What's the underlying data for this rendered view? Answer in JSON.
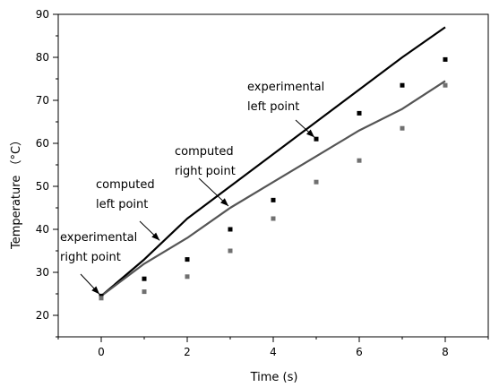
{
  "chart_data": {
    "type": "line",
    "xlabel": "Time (s)",
    "ylabel": "Temperature （°C）",
    "xlim": [
      -1,
      9
    ],
    "ylim": [
      15,
      90
    ],
    "x_ticks": [
      0,
      2,
      4,
      6,
      8
    ],
    "y_ticks": [
      20,
      30,
      40,
      50,
      60,
      70,
      80,
      90
    ],
    "grid": false,
    "series": [
      {
        "kind": "line",
        "color": "#000000",
        "x": [
          0,
          1,
          2,
          3,
          4,
          5,
          6,
          7,
          8
        ],
        "values": [
          24.5,
          33.0,
          42.5,
          50.0,
          57.5,
          65.0,
          72.5,
          80.0,
          87.0
        ]
      },
      {
        "kind": "line",
        "color": "#555555",
        "x": [
          0,
          1,
          2,
          3,
          4,
          5,
          6,
          7,
          8
        ],
        "values": [
          24.5,
          32.0,
          38.0,
          45.0,
          51.0,
          57.0,
          63.0,
          68.0,
          74.5
        ]
      },
      {
        "kind": "scatter",
        "color": "#000000",
        "x": [
          0,
          1,
          2,
          3,
          4,
          5,
          6,
          7,
          8
        ],
        "values": [
          24.5,
          28.5,
          33.0,
          40.0,
          46.8,
          61.0,
          67.0,
          73.5,
          79.5
        ]
      },
      {
        "kind": "scatter",
        "color": "#707070",
        "x": [
          0,
          1,
          2,
          3,
          4,
          5,
          6,
          7,
          8
        ],
        "values": [
          24.0,
          25.5,
          29.0,
          35.0,
          42.5,
          51.0,
          56.0,
          63.5,
          73.5
        ]
      }
    ],
    "annotations": [
      {
        "lines": [
          "experimental",
          "left point"
        ],
        "target": [
          5,
          61.0
        ]
      },
      {
        "lines": [
          "computed",
          "right point"
        ],
        "target": [
          3,
          45.0
        ]
      },
      {
        "lines": [
          "computed",
          "left point"
        ],
        "target": [
          1.4,
          37.0
        ]
      },
      {
        "lines": [
          "experimental",
          "right point"
        ],
        "target": [
          0,
          24.5
        ]
      }
    ]
  }
}
